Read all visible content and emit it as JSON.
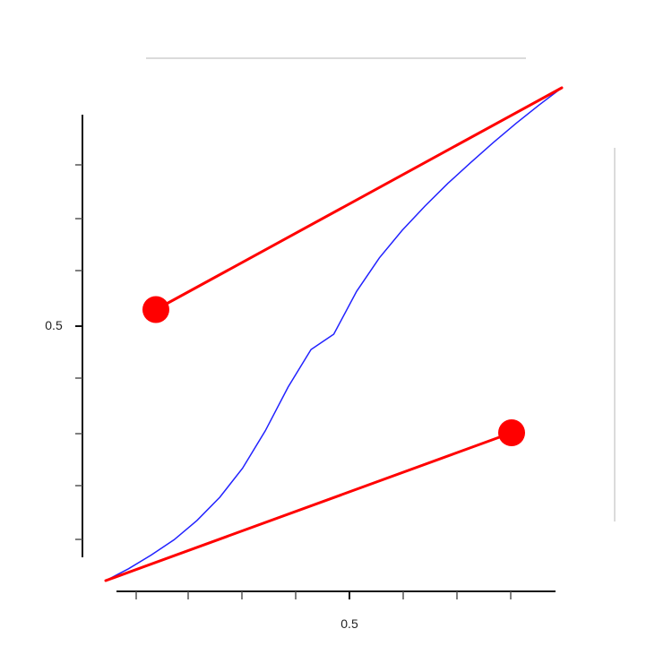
{
  "chart_data": {
    "type": "line",
    "title": "",
    "xlabel": "",
    "ylabel": "",
    "xlim": [
      0,
      1
    ],
    "ylim": [
      0,
      1
    ],
    "x_ticks": [
      0.5
    ],
    "y_ticks": [
      0.5
    ],
    "x_tick_labels": [
      "0.5"
    ],
    "y_tick_labels": [
      "0.5"
    ],
    "grid": false,
    "legend": "none",
    "colors": {
      "curve": "#2222ff",
      "handles": "#ff0000",
      "axes": "#111111",
      "frame": "#cfcfcf"
    },
    "bezier": {
      "p0": [
        0.0,
        0.0
      ],
      "p1": [
        0.11,
        0.55
      ],
      "p2": [
        0.89,
        0.3
      ],
      "p3": [
        1.0,
        1.0
      ]
    },
    "series": [
      {
        "type": "line",
        "x": [
          0.0,
          0.05,
          0.1,
          0.15,
          0.2,
          0.25,
          0.3,
          0.35,
          0.4,
          0.45,
          0.5,
          0.55,
          0.6,
          0.65,
          0.7,
          0.75,
          0.8,
          0.85,
          0.9,
          0.95,
          1.0
        ],
        "y": [
          0.0,
          0.024,
          0.052,
          0.083,
          0.122,
          0.169,
          0.228,
          0.304,
          0.393,
          0.469,
          0.5,
          0.587,
          0.655,
          0.711,
          0.76,
          0.806,
          0.848,
          0.889,
          0.928,
          0.965,
          1.0
        ]
      }
    ]
  }
}
